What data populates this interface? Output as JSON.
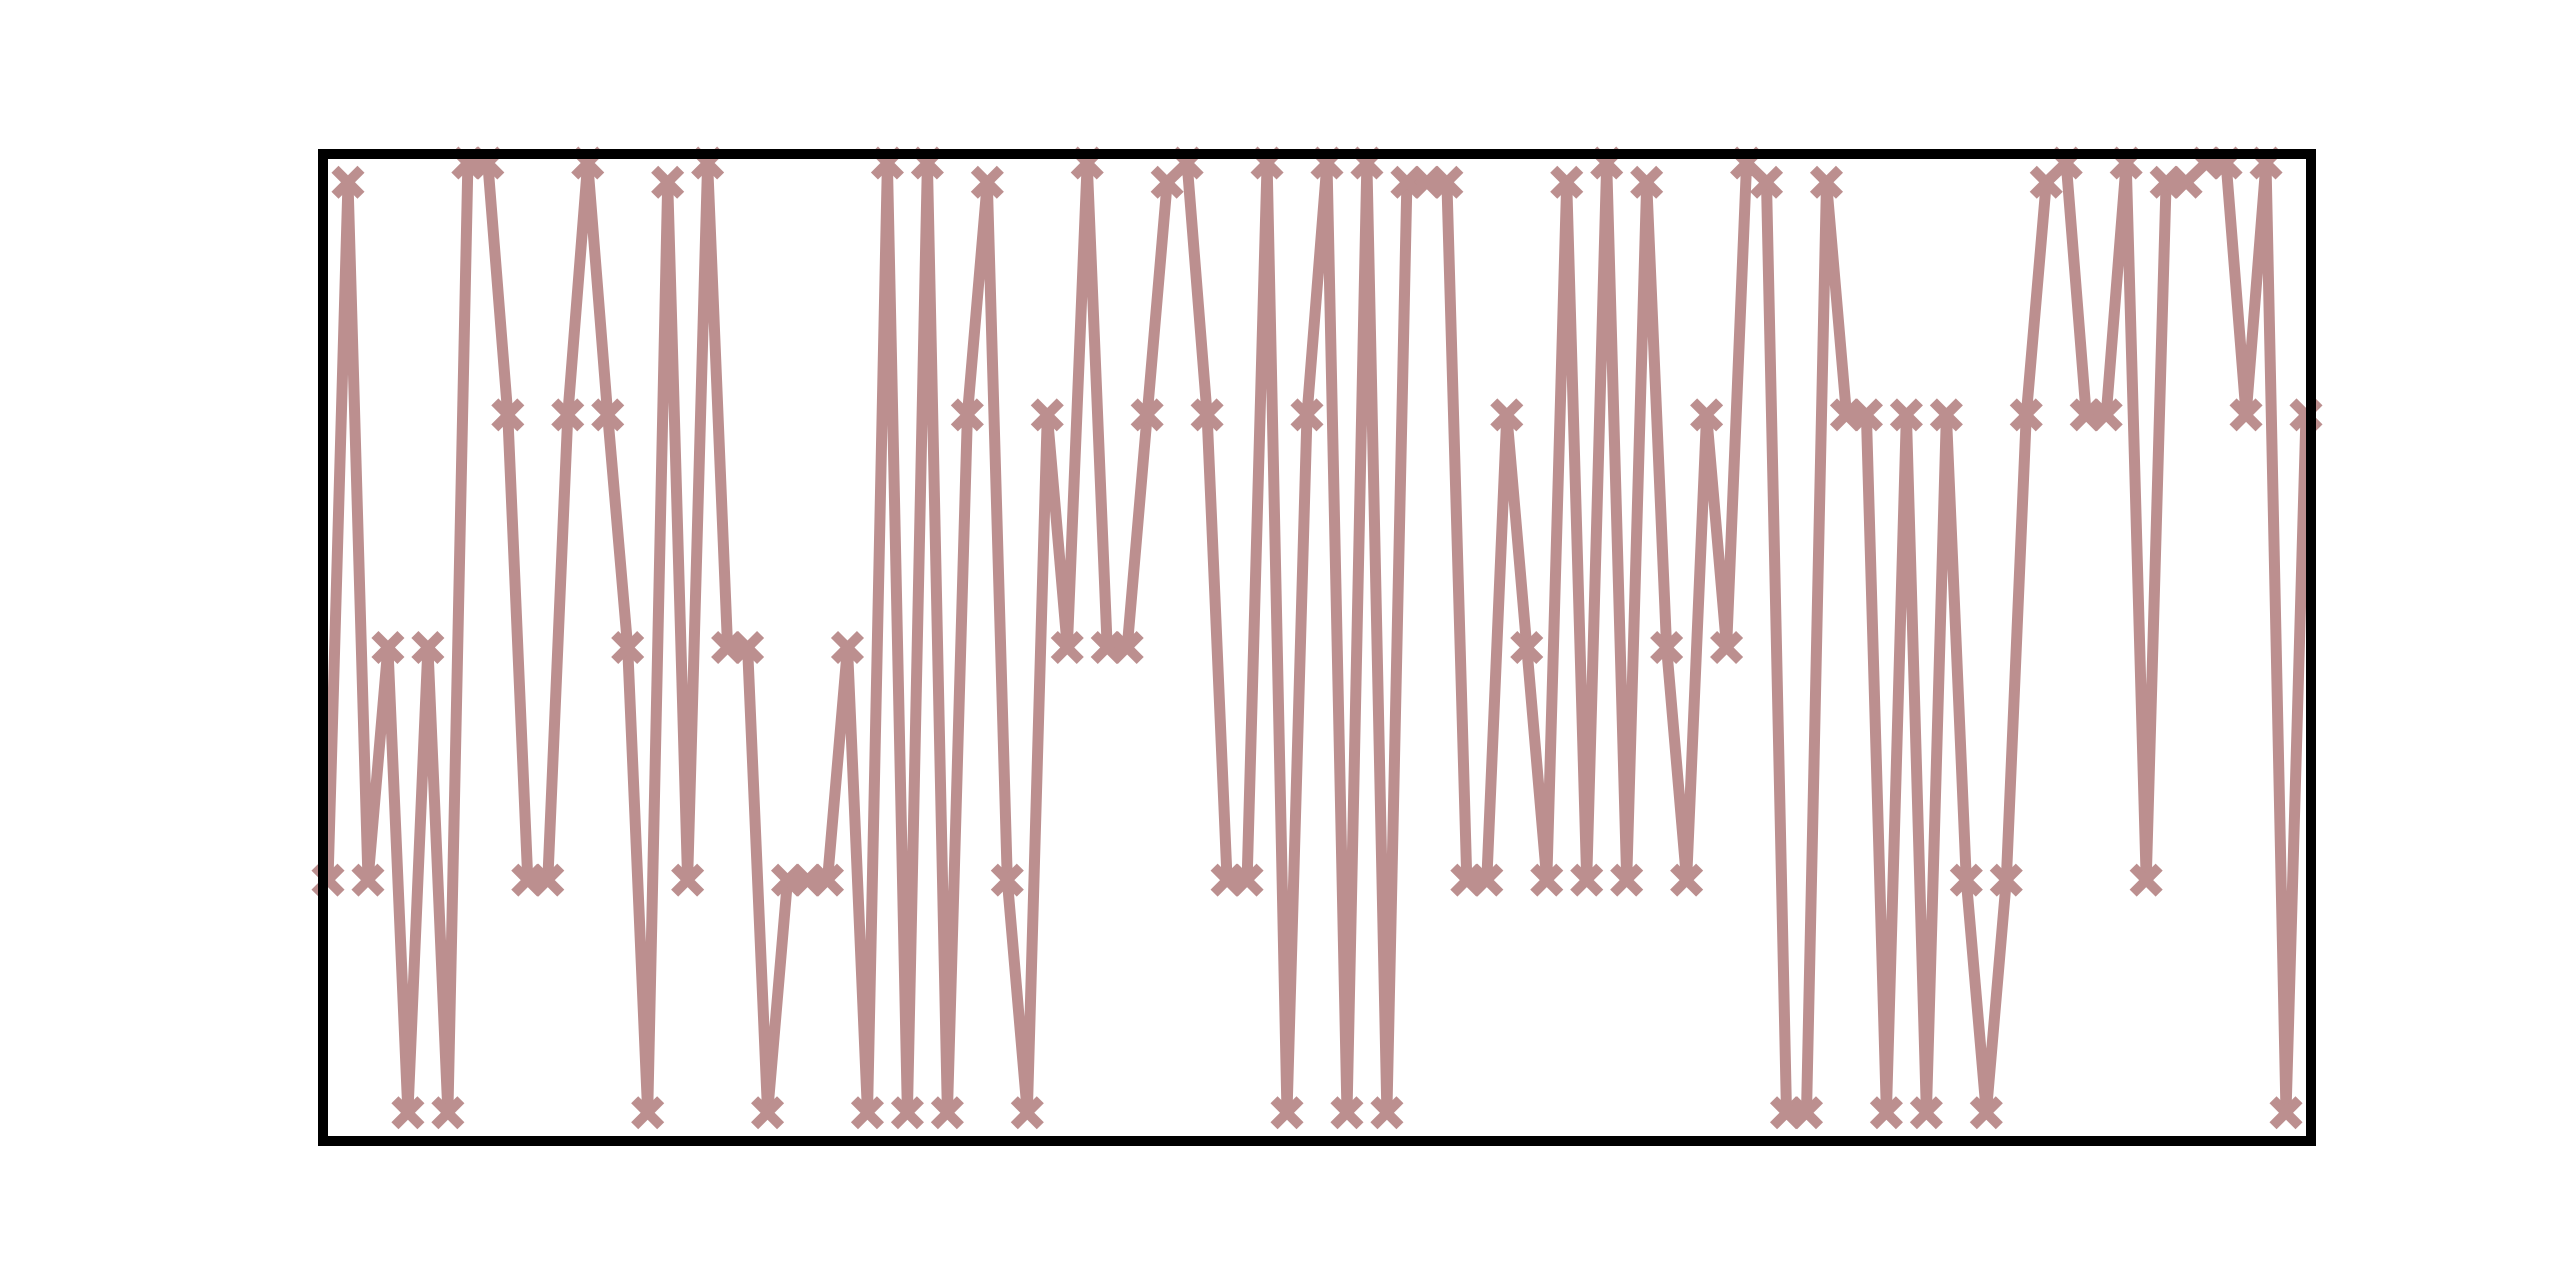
{
  "chart_data": {
    "type": "line",
    "title": "",
    "xlabel": "",
    "ylabel": "",
    "axes_visible": false,
    "grid": false,
    "legend": "none",
    "marker": "x",
    "ylim": [
      -0.1,
      4.1
    ],
    "series": [
      {
        "color": "#bc8f8f",
        "values": [
          1,
          4,
          1,
          2,
          0,
          2,
          0,
          5,
          5,
          3,
          1,
          1,
          3,
          5,
          3,
          2,
          0,
          4,
          1,
          5,
          2,
          2,
          0,
          1,
          1,
          1,
          2,
          0,
          5,
          0,
          5,
          0,
          3,
          4,
          1,
          0,
          3,
          2,
          5,
          2,
          2,
          3,
          4,
          5,
          3,
          1,
          1,
          5,
          0,
          3,
          5,
          0,
          5,
          0,
          4,
          4,
          4,
          1,
          1,
          3,
          2,
          1,
          4,
          1,
          5,
          1,
          4,
          2,
          1,
          3,
          2,
          5,
          4,
          0,
          0,
          4,
          3,
          3,
          0,
          3,
          0,
          3,
          1,
          0,
          1,
          3,
          4,
          5,
          3,
          3,
          5,
          1,
          4,
          4,
          5,
          5,
          3,
          5,
          0,
          3
        ]
      }
    ]
  }
}
